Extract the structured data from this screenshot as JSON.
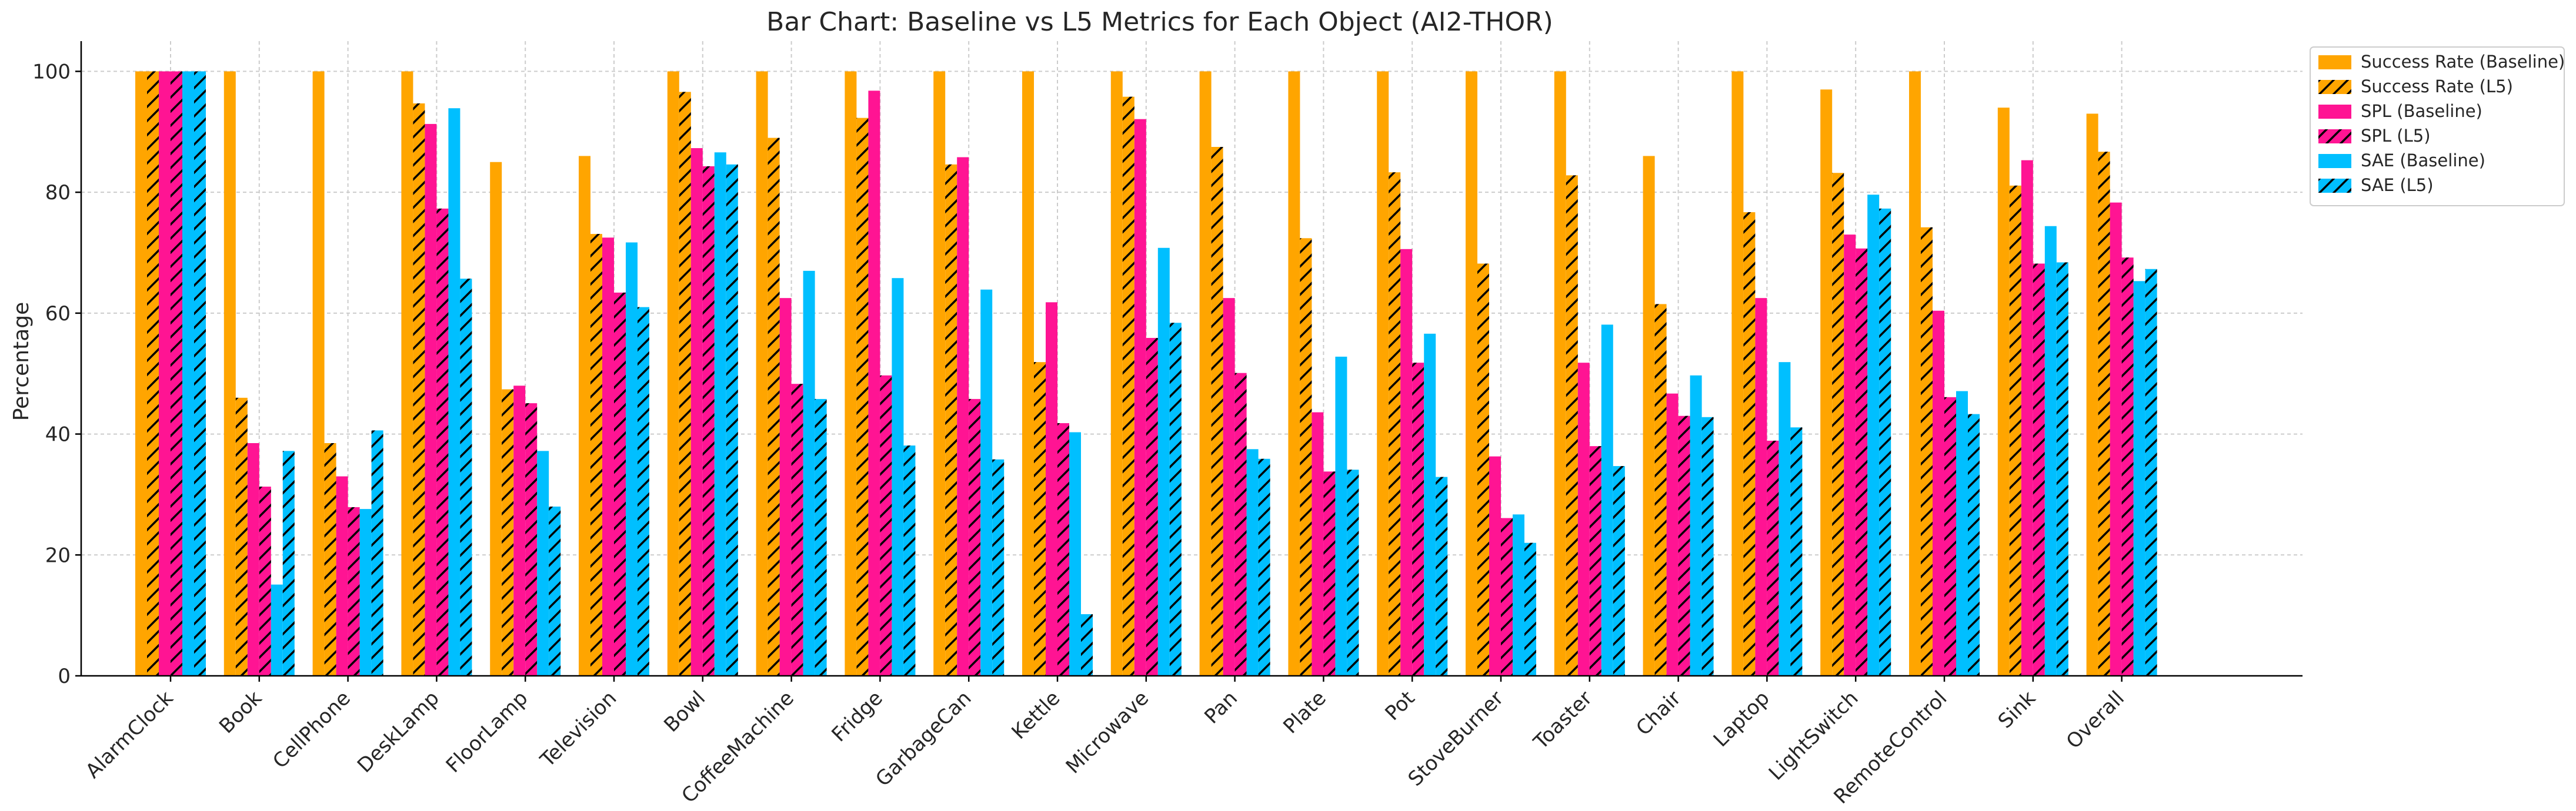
{
  "chart_data": {
    "type": "bar",
    "title": "Bar Chart: Baseline vs L5 Metrics for Each Object (AI2-THOR)",
    "xlabel": "",
    "ylabel": "Percentage",
    "ylim": [
      0,
      105
    ],
    "yticks": [
      0,
      20,
      40,
      60,
      80,
      100
    ],
    "grid": true,
    "legend_position": "top-right-outside",
    "categories": [
      "AlarmClock",
      "Book",
      "CellPhone",
      "DeskLamp",
      "FloorLamp",
      "Television",
      "Bowl",
      "CoffeeMachine",
      "Fridge",
      "GarbageCan",
      "Kettle",
      "Microwave",
      "Pan",
      "Plate",
      "Pot",
      "StoveBurner",
      "Toaster",
      "Chair",
      "Laptop",
      "LightSwitch",
      "RemoteControl",
      "Sink",
      "Overall"
    ],
    "series": [
      {
        "name": "Success Rate (Baseline)",
        "color": "#FFA500",
        "hatch": false,
        "values": [
          100,
          100,
          100,
          100,
          85,
          86,
          100,
          100,
          100,
          100,
          100,
          100,
          100,
          100,
          100,
          100,
          100,
          86,
          100,
          97,
          100,
          94,
          93
        ]
      },
      {
        "name": "Success Rate (L5)",
        "color": "#FFA500",
        "hatch": true,
        "values": [
          100,
          46,
          38.5,
          94.7,
          47.4,
          73.1,
          96.6,
          89,
          92.3,
          84.6,
          51.9,
          95.8,
          87.5,
          72.4,
          83.3,
          68.2,
          82.8,
          61.5,
          76.7,
          83.2,
          74.2,
          81.1,
          86.7
        ]
      },
      {
        "name": "SPL (Baseline)",
        "color": "#FF1493",
        "hatch": false,
        "values": [
          100,
          38.5,
          33,
          91.3,
          48,
          72.5,
          87.3,
          62.5,
          96.8,
          85.8,
          61.8,
          92.1,
          62.5,
          43.6,
          70.6,
          36.3,
          51.8,
          46.7,
          62.5,
          73,
          60.4,
          85.3,
          78.3
        ]
      },
      {
        "name": "SPL (L5)",
        "color": "#FF1493",
        "hatch": true,
        "values": [
          100,
          31.3,
          27.9,
          77.3,
          45.1,
          63.4,
          84.3,
          48.3,
          49.7,
          45.8,
          41.8,
          55.9,
          50.1,
          33.8,
          51.8,
          26.1,
          38,
          43,
          38.9,
          70.7,
          46.1,
          68.2,
          69.2
        ]
      },
      {
        "name": "SAE (Baseline)",
        "color": "#00BFFF",
        "hatch": false,
        "values": [
          100,
          15.1,
          27.6,
          93.9,
          37.2,
          71.7,
          86.6,
          67,
          65.8,
          63.9,
          40.3,
          70.8,
          37.5,
          52.8,
          56.6,
          26.7,
          58.1,
          49.7,
          51.9,
          79.6,
          47.1,
          74.4,
          65.3
        ]
      },
      {
        "name": "SAE (L5)",
        "color": "#00BFFF",
        "hatch": true,
        "values": [
          100,
          37.2,
          40.6,
          65.7,
          28,
          61,
          84.6,
          45.8,
          38.1,
          35.8,
          10.2,
          58.4,
          35.9,
          34.1,
          32.9,
          22,
          34.7,
          42.8,
          41.1,
          77.3,
          43.3,
          68.4,
          67.3
        ]
      }
    ]
  }
}
